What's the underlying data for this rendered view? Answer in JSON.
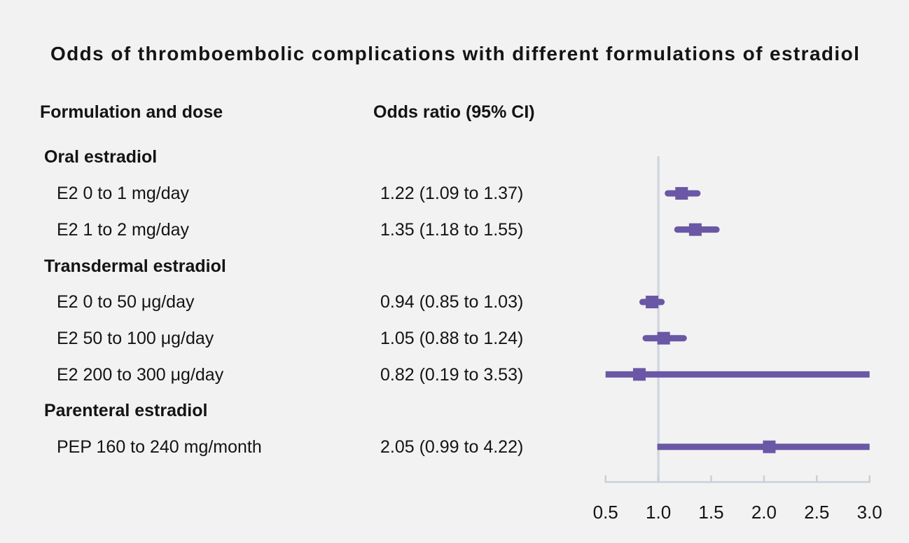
{
  "title": "Odds of thromboembolic complications with different formulations of estradiol",
  "columns": {
    "formulation_and_dose": "Formulation and dose",
    "odds_ratio": "Odds ratio (95% CI)"
  },
  "rows": [
    {
      "kind": "group",
      "label": "Oral estradiol"
    },
    {
      "kind": "item",
      "label": "E2 0 to 1 mg/day",
      "or_text": "1.22 (1.09 to 1.37)"
    },
    {
      "kind": "item",
      "label": "E2 1 to 2 mg/day",
      "or_text": "1.35 (1.18 to 1.55)"
    },
    {
      "kind": "group",
      "label": "Transdermal estradiol"
    },
    {
      "kind": "item",
      "label": "E2 0 to 50 μg/day",
      "or_text": "0.94 (0.85 to 1.03)"
    },
    {
      "kind": "item",
      "label": "E2 50 to 100 μg/day",
      "or_text": "1.05 (0.88 to 1.24)"
    },
    {
      "kind": "item",
      "label": "E2 200 to 300 μg/day",
      "or_text": "0.82 (0.19 to 3.53)"
    },
    {
      "kind": "group",
      "label": "Parenteral estradiol"
    },
    {
      "kind": "item",
      "label": "PEP 160 to 240 mg/month",
      "or_text": "2.05 (0.99 to 4.22)"
    }
  ],
  "chart_data": {
    "type": "forest",
    "xlim": [
      0.5,
      3.0
    ],
    "reference_value": 1.0,
    "tick_values": [
      0.5,
      1.0,
      1.5,
      2.0,
      2.5,
      3.0
    ],
    "tick_labels": [
      "0.5",
      "1.0",
      "1.5",
      "2.0",
      "2.5",
      "3.0"
    ],
    "grid": false,
    "series": [
      {
        "label": "E2 0 to 1 mg/day",
        "or": 1.22,
        "ci_low": 1.09,
        "ci_high": 1.37
      },
      {
        "label": "E2 1 to 2 mg/day",
        "or": 1.35,
        "ci_low": 1.18,
        "ci_high": 1.55
      },
      {
        "label": "E2 0 to 50 μg/day",
        "or": 0.94,
        "ci_low": 0.85,
        "ci_high": 1.03
      },
      {
        "label": "E2 50 to 100 μg/day",
        "or": 1.05,
        "ci_low": 0.88,
        "ci_high": 1.24
      },
      {
        "label": "E2 200 to 300 μg/day",
        "or": 0.82,
        "ci_low": 0.19,
        "ci_high": 3.53
      },
      {
        "label": "PEP 160 to 240 mg/month",
        "or": 2.05,
        "ci_low": 0.99,
        "ci_high": 4.22
      }
    ]
  },
  "colors": {
    "accent": "#6a57a5",
    "reference_line": "#d2d7df",
    "axis": "#c9cfda",
    "background": "#f2f2f2",
    "text": "#141414"
  }
}
